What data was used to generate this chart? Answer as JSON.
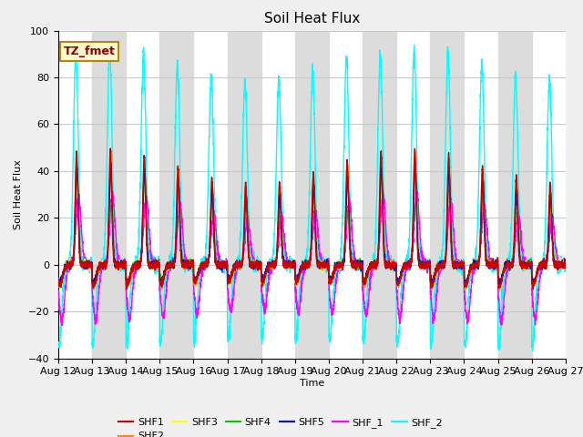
{
  "title": "Soil Heat Flux",
  "xlabel": "Time",
  "ylabel": "Soil Heat Flux",
  "ylim": [
    -40,
    100
  ],
  "annotation_text": "TZ_fmet",
  "annotation_color": "#8B0000",
  "annotation_bg": "#FFFACD",
  "annotation_border": "#B8860B",
  "series": {
    "SHF1": {
      "color": "#CC0000"
    },
    "SHF2": {
      "color": "#FF8C00"
    },
    "SHF3": {
      "color": "#FFFF00"
    },
    "SHF4": {
      "color": "#00CC00"
    },
    "SHF5": {
      "color": "#0000CC"
    },
    "SHF_1": {
      "color": "#FF00FF"
    },
    "SHF_2": {
      "color": "#00FFFF"
    }
  },
  "xtick_labels": [
    "Aug 12",
    "Aug 13",
    "Aug 14",
    "Aug 15",
    "Aug 16",
    "Aug 17",
    "Aug 18",
    "Aug 19",
    "Aug 20",
    "Aug 21",
    "Aug 22",
    "Aug 23",
    "Aug 24",
    "Aug 25",
    "Aug 26",
    "Aug 27"
  ],
  "band_color": "#DCDCDC",
  "grid_color": "#C8C8C8",
  "bg_color": "#FFFFFF",
  "fig_bg": "#F0F0F0"
}
